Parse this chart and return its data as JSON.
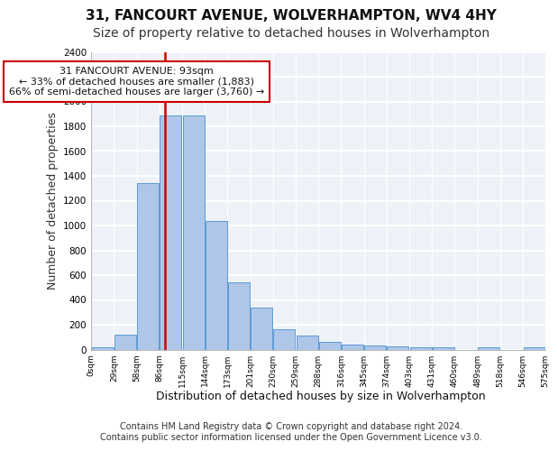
{
  "title1": "31, FANCOURT AVENUE, WOLVERHAMPTON, WV4 4HY",
  "title2": "Size of property relative to detached houses in Wolverhampton",
  "xlabel": "Distribution of detached houses by size in Wolverhampton",
  "ylabel": "Number of detached properties",
  "bar_values": [
    15,
    120,
    1340,
    1890,
    1890,
    1040,
    540,
    335,
    165,
    110,
    60,
    40,
    30,
    25,
    20,
    15,
    0,
    20,
    0,
    15
  ],
  "tick_labels": [
    "0sqm",
    "29sqm",
    "58sqm",
    "86sqm",
    "115sqm",
    "144sqm",
    "173sqm",
    "201sqm",
    "230sqm",
    "259sqm",
    "288sqm",
    "316sqm",
    "345sqm",
    "374sqm",
    "403sqm",
    "431sqm",
    "460sqm",
    "489sqm",
    "518sqm",
    "546sqm",
    "575sqm"
  ],
  "bar_color": "#aec6e8",
  "bar_edge_color": "#5b9bd5",
  "vline_x": 2.74,
  "vline_color": "#cc0000",
  "annotation_text": "31 FANCOURT AVENUE: 93sqm\n← 33% of detached houses are smaller (1,883)\n66% of semi-detached houses are larger (3,760) →",
  "annotation_box_color": "#ffffff",
  "annotation_box_edge": "#cc0000",
  "ylim": [
    0,
    2400
  ],
  "yticks": [
    0,
    200,
    400,
    600,
    800,
    1000,
    1200,
    1400,
    1600,
    1800,
    2000,
    2200,
    2400
  ],
  "footer1": "Contains HM Land Registry data © Crown copyright and database right 2024.",
  "footer2": "Contains public sector information licensed under the Open Government Licence v3.0.",
  "bg_color": "#eef2f8",
  "grid_color": "#ffffff",
  "title1_fontsize": 11,
  "title2_fontsize": 10,
  "xlabel_fontsize": 9,
  "ylabel_fontsize": 9,
  "annotation_fontsize": 8,
  "footer_fontsize": 7
}
